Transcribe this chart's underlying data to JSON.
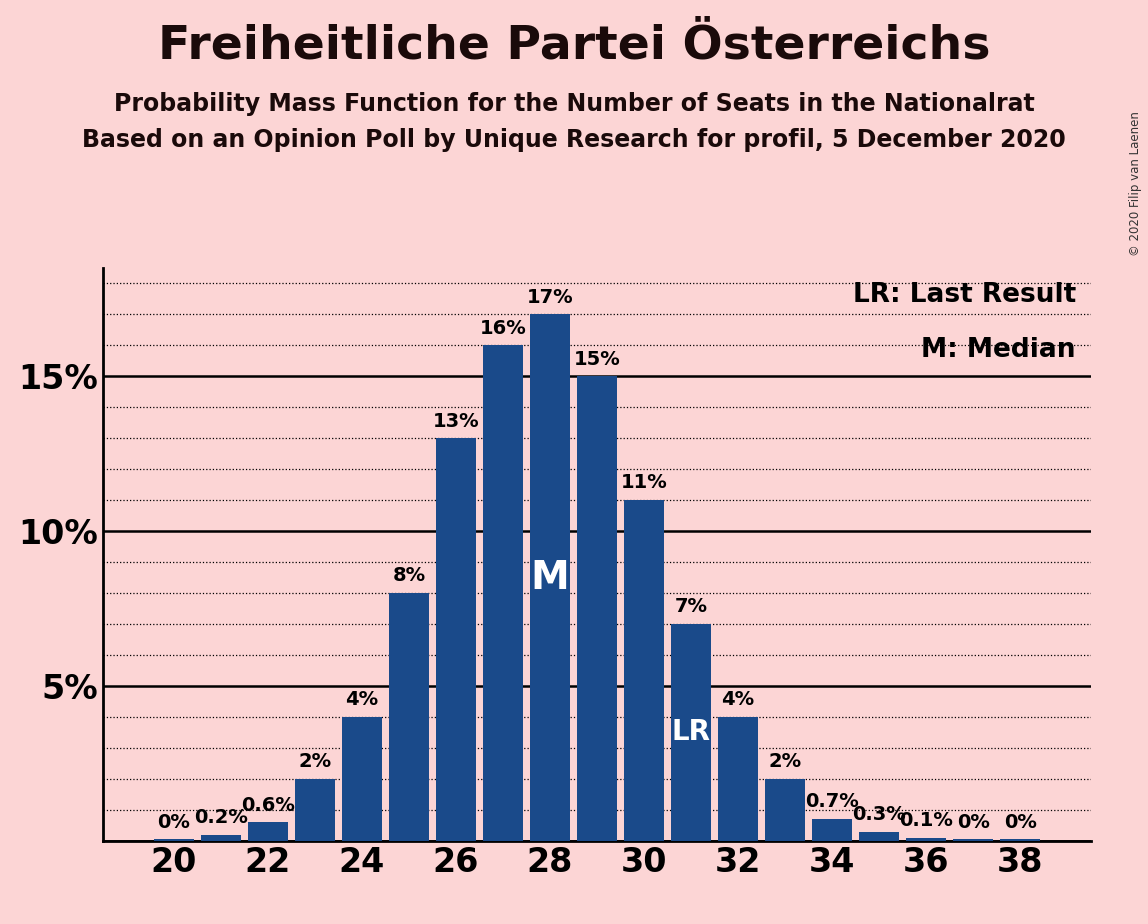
{
  "title": "Freiheitliche Partei Österreichs",
  "subtitle1": "Probability Mass Function for the Number of Seats in the Nationalrat",
  "subtitle2": "Based on an Opinion Poll by Unique Research for profil, 5 December 2020",
  "copyright": "© 2020 Filip van Laenen",
  "legend_lr": "LR: Last Result",
  "legend_m": "M: Median",
  "background_color": "#fcd5d5",
  "bar_color": "#1a4a8a",
  "seats": [
    20,
    21,
    22,
    23,
    24,
    25,
    26,
    27,
    28,
    29,
    30,
    31,
    32,
    33,
    34,
    35,
    36,
    37,
    38
  ],
  "probabilities": [
    0.05,
    0.2,
    0.6,
    2.0,
    4.0,
    8.0,
    13.0,
    16.0,
    17.0,
    15.0,
    11.0,
    7.0,
    4.0,
    2.0,
    0.7,
    0.3,
    0.1,
    0.05,
    0.05
  ],
  "labels": [
    "0%",
    "0.2%",
    "0.6%",
    "2%",
    "4%",
    "8%",
    "13%",
    "16%",
    "17%",
    "15%",
    "11%",
    "7%",
    "4%",
    "2%",
    "0.7%",
    "0.3%",
    "0.1%",
    "0%",
    "0%"
  ],
  "median_seat": 28,
  "last_result_seat": 31,
  "ylim_max": 18.5,
  "ytick_major": [
    0,
    5,
    10,
    15
  ],
  "ytick_minor": [
    1,
    2,
    3,
    4,
    6,
    7,
    8,
    9,
    11,
    12,
    13,
    14,
    16,
    17,
    18
  ],
  "xticks": [
    20,
    22,
    24,
    26,
    28,
    30,
    32,
    34,
    36,
    38
  ],
  "title_fontsize": 34,
  "subtitle_fontsize": 17,
  "axis_tick_fontsize": 24,
  "bar_label_fontsize": 14,
  "legend_fontsize": 19,
  "marker_fontsize_m": 28,
  "marker_fontsize_lr": 20
}
